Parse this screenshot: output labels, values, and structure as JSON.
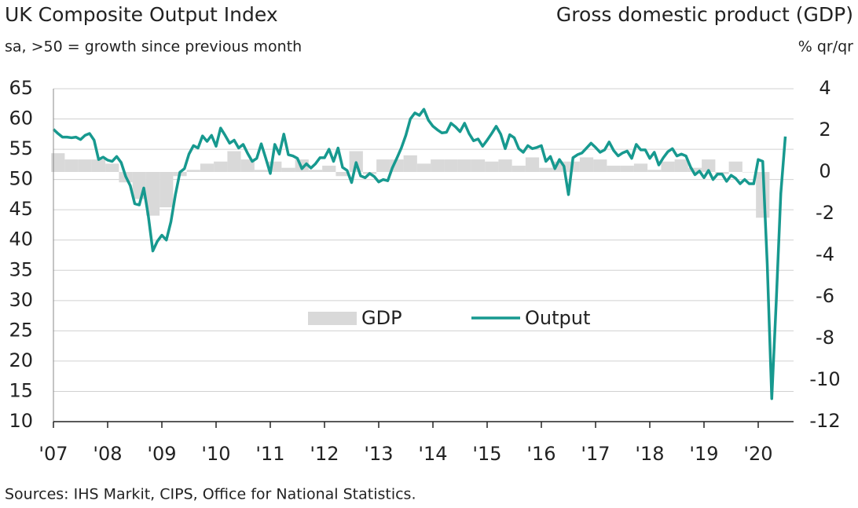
{
  "chart_data": {
    "type": "combo",
    "title": "UK Composite Output Index",
    "subtitle": "sa, >50 = growth since previous month",
    "y2_title": "Gross domestic product (GDP)",
    "y2_subtitle": "% qr/qr",
    "source": "Sources: IHS Markit, CIPS, Office for National Statistics.",
    "categories": [
      "'07",
      null,
      null,
      null,
      null,
      null,
      null,
      null,
      null,
      null,
      null,
      null,
      "'08",
      null,
      null,
      null,
      null,
      null,
      null,
      null,
      null,
      null,
      null,
      null,
      "'09",
      null,
      null,
      null,
      null,
      null,
      null,
      null,
      null,
      null,
      null,
      null,
      "'10",
      null,
      null,
      null,
      null,
      null,
      null,
      null,
      null,
      null,
      null,
      null,
      "'11",
      null,
      null,
      null,
      null,
      null,
      null,
      null,
      null,
      null,
      null,
      null,
      "'12",
      null,
      null,
      null,
      null,
      null,
      null,
      null,
      null,
      null,
      null,
      null,
      "'13",
      null,
      null,
      null,
      null,
      null,
      null,
      null,
      null,
      null,
      null,
      null,
      "'14",
      null,
      null,
      null,
      null,
      null,
      null,
      null,
      null,
      null,
      null,
      null,
      "'15",
      null,
      null,
      null,
      null,
      null,
      null,
      null,
      null,
      null,
      null,
      null,
      "'16",
      null,
      null,
      null,
      null,
      null,
      null,
      null,
      null,
      null,
      null,
      null,
      "'17",
      null,
      null,
      null,
      null,
      null,
      null,
      null,
      null,
      null,
      null,
      null,
      "'18",
      null,
      null,
      null,
      null,
      null,
      null,
      null,
      null,
      null,
      null,
      null,
      "'19",
      null,
      null,
      null,
      null,
      null,
      null,
      null,
      null,
      null,
      null,
      null,
      "'20",
      null,
      null,
      null,
      null,
      null,
      null
    ],
    "series": [
      {
        "name": "GDP",
        "type": "bar",
        "axis": "y2",
        "color": "#d9d9d9",
        "values": [
          null,
          0.9,
          null,
          null,
          0.6,
          null,
          null,
          0.6,
          null,
          null,
          0.6,
          null,
          null,
          0.4,
          null,
          null,
          -0.5,
          null,
          null,
          -1.3,
          null,
          null,
          -2.1,
          null,
          null,
          -1.7,
          null,
          null,
          -0.2,
          null,
          null,
          0.1,
          null,
          null,
          0.4,
          null,
          null,
          0.5,
          null,
          null,
          1.0,
          null,
          null,
          0.6,
          null,
          null,
          0.1,
          null,
          null,
          0.5,
          null,
          null,
          0.2,
          null,
          null,
          0.6,
          null,
          null,
          0.1,
          null,
          null,
          0.3,
          null,
          null,
          -0.2,
          null,
          null,
          1.0,
          null,
          null,
          -0.1,
          null,
          null,
          0.6,
          null,
          null,
          0.6,
          null,
          null,
          0.8,
          null,
          null,
          0.4,
          null,
          null,
          0.6,
          null,
          null,
          0.6,
          null,
          null,
          0.6,
          null,
          null,
          0.6,
          null,
          null,
          0.5,
          null,
          null,
          0.6,
          null,
          null,
          0.3,
          null,
          null,
          0.7,
          null,
          null,
          0.2,
          null,
          null,
          0.5,
          null,
          null,
          0.5,
          null,
          null,
          0.7,
          null,
          null,
          0.6,
          null,
          null,
          0.3,
          null,
          null,
          0.3,
          null,
          null,
          0.4,
          null,
          null,
          0.1,
          null,
          null,
          0.5,
          null,
          null,
          0.6,
          null,
          null,
          0.2,
          null,
          null,
          0.6,
          null,
          null,
          -0.1,
          null,
          null,
          0.5,
          null,
          null,
          0.0,
          null,
          null,
          -2.2,
          null,
          null,
          null,
          null,
          null
        ]
      },
      {
        "name": "Output",
        "type": "line",
        "color": "#17998f",
        "values": [
          58.3,
          57.6,
          57.0,
          57.0,
          56.9,
          57.0,
          56.6,
          57.3,
          57.6,
          56.5,
          53.3,
          53.7,
          53.2,
          53.0,
          53.8,
          52.8,
          50.5,
          49.0,
          46.0,
          45.8,
          48.6,
          44.0,
          38.2,
          39.8,
          40.8,
          40.0,
          43.0,
          47.5,
          51.2,
          51.8,
          54.2,
          55.6,
          55.2,
          57.2,
          56.3,
          57.3,
          55.5,
          58.5,
          57.3,
          56.0,
          56.5,
          55.2,
          55.8,
          54.3,
          53.0,
          53.5,
          55.9,
          53.5,
          51.0,
          55.8,
          54.2,
          57.5,
          54.1,
          53.9,
          53.5,
          51.8,
          52.6,
          51.9,
          52.6,
          53.6,
          53.6,
          55.0,
          53.0,
          55.2,
          52.0,
          51.5,
          49.5,
          52.8,
          50.6,
          50.3,
          51.0,
          50.5,
          49.6,
          50.0,
          49.8,
          51.9,
          53.5,
          55.2,
          57.3,
          60.0,
          61.0,
          60.6,
          61.6,
          59.8,
          58.8,
          58.2,
          57.7,
          57.8,
          59.3,
          58.7,
          57.9,
          59.3,
          57.6,
          56.4,
          56.7,
          55.5,
          56.5,
          57.6,
          58.8,
          57.5,
          55.1,
          57.4,
          56.9,
          55.1,
          54.5,
          55.6,
          55.1,
          55.3,
          55.6,
          53.0,
          53.8,
          51.8,
          53.3,
          52.2,
          47.5,
          53.6,
          54.1,
          54.4,
          55.2,
          56.0,
          55.3,
          54.5,
          54.9,
          56.2,
          54.8,
          53.9,
          54.4,
          54.7,
          53.5,
          55.8,
          54.9,
          54.9,
          53.5,
          54.5,
          52.4,
          53.6,
          54.6,
          55.1,
          53.9,
          54.2,
          53.9,
          52.1,
          50.8,
          51.4,
          50.3,
          51.5,
          50.0,
          50.9,
          50.9,
          49.7,
          50.7,
          50.2,
          49.3,
          50.0,
          49.3,
          49.3,
          53.3,
          53.0,
          36.0,
          13.8,
          30.0,
          47.7,
          57.1
        ]
      }
    ],
    "ylim": [
      10,
      65
    ],
    "yticks": [
      10,
      15,
      20,
      25,
      30,
      35,
      40,
      45,
      50,
      55,
      60,
      65
    ],
    "y2lim": [
      -12,
      4
    ],
    "y2ticks": [
      -12,
      -10,
      -8,
      -6,
      -4,
      -2,
      0,
      2,
      4
    ],
    "grid": true
  }
}
